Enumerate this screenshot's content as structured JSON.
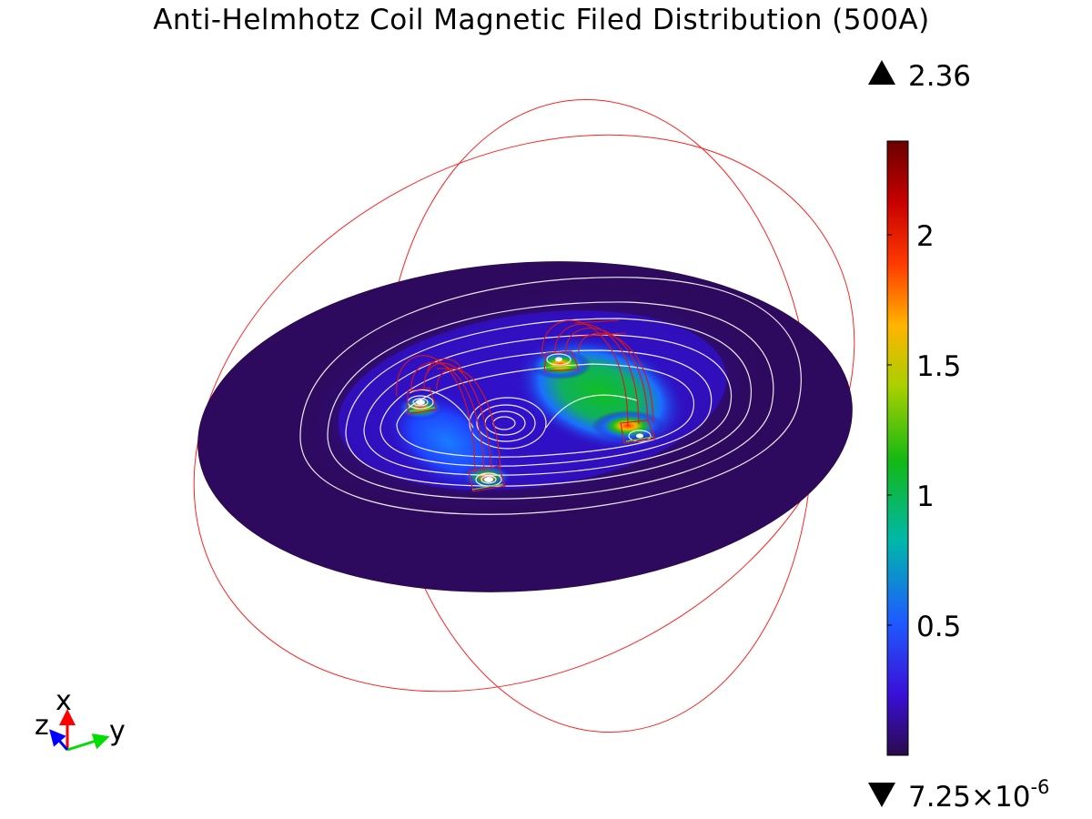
{
  "title": "Anti-Helmhotz Coil Magnetic Filed Distribution (500A)",
  "colorbar": {
    "max_label": "2.36",
    "min_label_mantissa": "7.25×10",
    "min_label_exponent": "-6",
    "min": 7.25e-06,
    "max": 2.36,
    "ticks": [
      {
        "value": 2,
        "label": "2"
      },
      {
        "value": 1.5,
        "label": "1.5"
      },
      {
        "value": 1,
        "label": "1"
      },
      {
        "value": 0.5,
        "label": "0.5"
      }
    ],
    "colormap": [
      "#2a0a4a",
      "#3a10d8",
      "#1e5cff",
      "#00b8a8",
      "#14b814",
      "#a8d000",
      "#ffb400",
      "#ff3a00",
      "#c80000",
      "#6a0000"
    ]
  },
  "axes_triad": {
    "x_label": "x",
    "y_label": "y",
    "z_label": "z",
    "x_color": "#ff0000",
    "y_color": "#00dd00",
    "z_color": "#0000ff"
  },
  "colors": {
    "boundary_wire": "#ff2222",
    "coil_wire": "#d81818",
    "contour": "#ffffff",
    "plane_base": "#2e0a5e"
  }
}
